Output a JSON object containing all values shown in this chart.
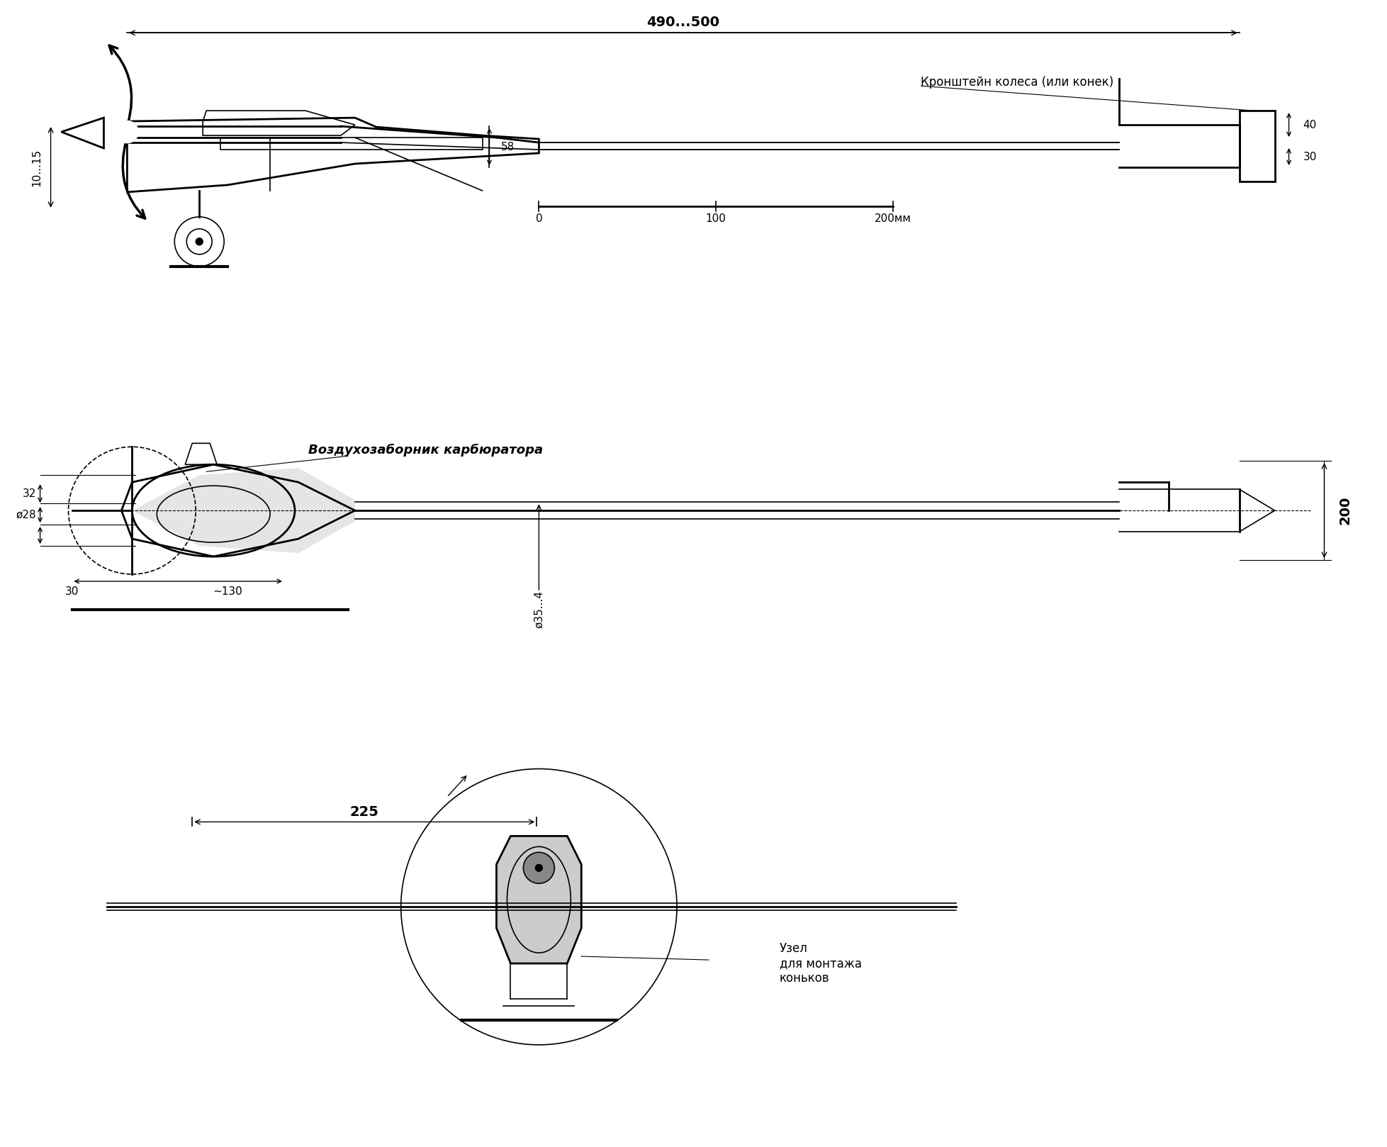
{
  "title": "",
  "bg_color": "#ffffff",
  "line_color": "#000000",
  "fig_width": 19.57,
  "fig_height": 16.18,
  "labels": {
    "dim_490_500": "490...500",
    "kronshtein": "Кронштейн колеса (или конек)",
    "dim_10_15": "10...15",
    "dim_58": "58",
    "scale_0": "0",
    "scale_100": "100",
    "scale_200mm": "200мм",
    "dim_40": "40",
    "dim_30_top": "30",
    "vozduh": "Воздухозаборник карбюратора",
    "dim_32": "32",
    "dim_28": "ø28",
    "dim_30_bot": "30",
    "dim_130": "~130",
    "dim_35": "ø35...4",
    "dim_225": "225",
    "dim_200": "200",
    "uzel": "Узел\nдля монтажа\nконьков"
  }
}
